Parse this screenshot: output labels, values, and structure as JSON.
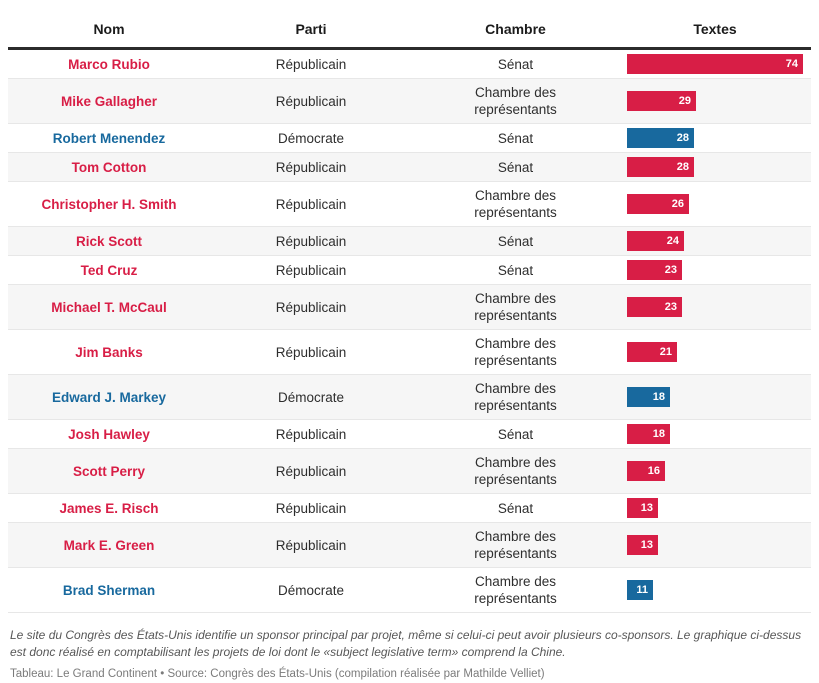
{
  "table": {
    "columns": [
      "Nom",
      "Parti",
      "Chambre",
      "Textes"
    ],
    "rows": [
      {
        "name": "Marco Rubio",
        "party": "Républicain",
        "chamber": "Sénat",
        "value": 74,
        "color": "republican"
      },
      {
        "name": "Mike Gallagher",
        "party": "Républicain",
        "chamber": "Chambre des représentants",
        "value": 29,
        "color": "republican"
      },
      {
        "name": "Robert Menendez",
        "party": "Démocrate",
        "chamber": "Sénat",
        "value": 28,
        "color": "democrat"
      },
      {
        "name": "Tom Cotton",
        "party": "Républicain",
        "chamber": "Sénat",
        "value": 28,
        "color": "republican"
      },
      {
        "name": "Christopher H. Smith",
        "party": "Républicain",
        "chamber": "Chambre des représentants",
        "value": 26,
        "color": "republican"
      },
      {
        "name": "Rick Scott",
        "party": "Républicain",
        "chamber": "Sénat",
        "value": 24,
        "color": "republican"
      },
      {
        "name": "Ted Cruz",
        "party": "Républicain",
        "chamber": "Sénat",
        "value": 23,
        "color": "republican"
      },
      {
        "name": "Michael T. McCaul",
        "party": "Républicain",
        "chamber": "Chambre des représentants",
        "value": 23,
        "color": "republican"
      },
      {
        "name": "Jim Banks",
        "party": "Républicain",
        "chamber": "Chambre des représentants",
        "value": 21,
        "color": "republican"
      },
      {
        "name": "Edward J. Markey",
        "party": "Démocrate",
        "chamber": "Chambre des représentants",
        "value": 18,
        "color": "democrat"
      },
      {
        "name": "Josh Hawley",
        "party": "Républicain",
        "chamber": "Sénat",
        "value": 18,
        "color": "republican"
      },
      {
        "name": "Scott Perry",
        "party": "Républicain",
        "chamber": "Chambre des représentants",
        "value": 16,
        "color": "republican"
      },
      {
        "name": "James E. Risch",
        "party": "Républicain",
        "chamber": "Sénat",
        "value": 13,
        "color": "republican"
      },
      {
        "name": "Mark E. Green",
        "party": "Républicain",
        "chamber": "Chambre des représentants",
        "value": 13,
        "color": "republican"
      },
      {
        "name": "Brad Sherman",
        "party": "Démocrate",
        "chamber": "Chambre des représentants",
        "value": 11,
        "color": "democrat"
      }
    ]
  },
  "colors": {
    "republican": "#d81e46",
    "democrat": "#18699e",
    "header_rule": "#2b2b2b",
    "row_stripe": "#f6f6f6",
    "bar_value_text": "#ffffff"
  },
  "footer": {
    "note": "Le site du Congrès des États-Unis identifie un sponsor principal par projet, même si celui-ci peut avoir plusieurs co-sponsors. Le graphique ci-dessus est donc réalisé en comptabilisant les projets de loi dont le «subject legislative term» comprend la Chine.",
    "credit": "Tableau: Le Grand Continent • Source: Congrès des États-Unis (compilation réalisée par Mathilde Velliet)"
  },
  "chart_data": {
    "type": "bar",
    "orientation": "horizontal",
    "title": "",
    "column_headers": [
      "Nom",
      "Parti",
      "Chambre",
      "Textes"
    ],
    "categories": [
      "Marco Rubio",
      "Mike Gallagher",
      "Robert Menendez",
      "Tom Cotton",
      "Christopher H. Smith",
      "Rick Scott",
      "Ted Cruz",
      "Michael T. McCaul",
      "Jim Banks",
      "Edward J. Markey",
      "Josh Hawley",
      "Scott Perry",
      "James E. Risch",
      "Mark E. Green",
      "Brad Sherman"
    ],
    "values": [
      74,
      29,
      28,
      28,
      26,
      24,
      23,
      23,
      21,
      18,
      18,
      16,
      13,
      13,
      11
    ],
    "party": [
      "Républicain",
      "Républicain",
      "Démocrate",
      "Républicain",
      "Républicain",
      "Républicain",
      "Républicain",
      "Républicain",
      "Républicain",
      "Démocrate",
      "Républicain",
      "Républicain",
      "Républicain",
      "Républicain",
      "Démocrate"
    ],
    "chamber": [
      "Sénat",
      "Chambre des représentants",
      "Sénat",
      "Sénat",
      "Chambre des représentants",
      "Sénat",
      "Sénat",
      "Chambre des représentants",
      "Chambre des représentants",
      "Chambre des représentants",
      "Sénat",
      "Chambre des représentants",
      "Sénat",
      "Chambre des représentants",
      "Chambre des représentants"
    ],
    "xlim": [
      0,
      74
    ],
    "bar_colors": {
      "Républicain": "#d81e46",
      "Démocrate": "#18699e"
    },
    "data_labels": "inside-end",
    "grid": false,
    "legend": false
  }
}
